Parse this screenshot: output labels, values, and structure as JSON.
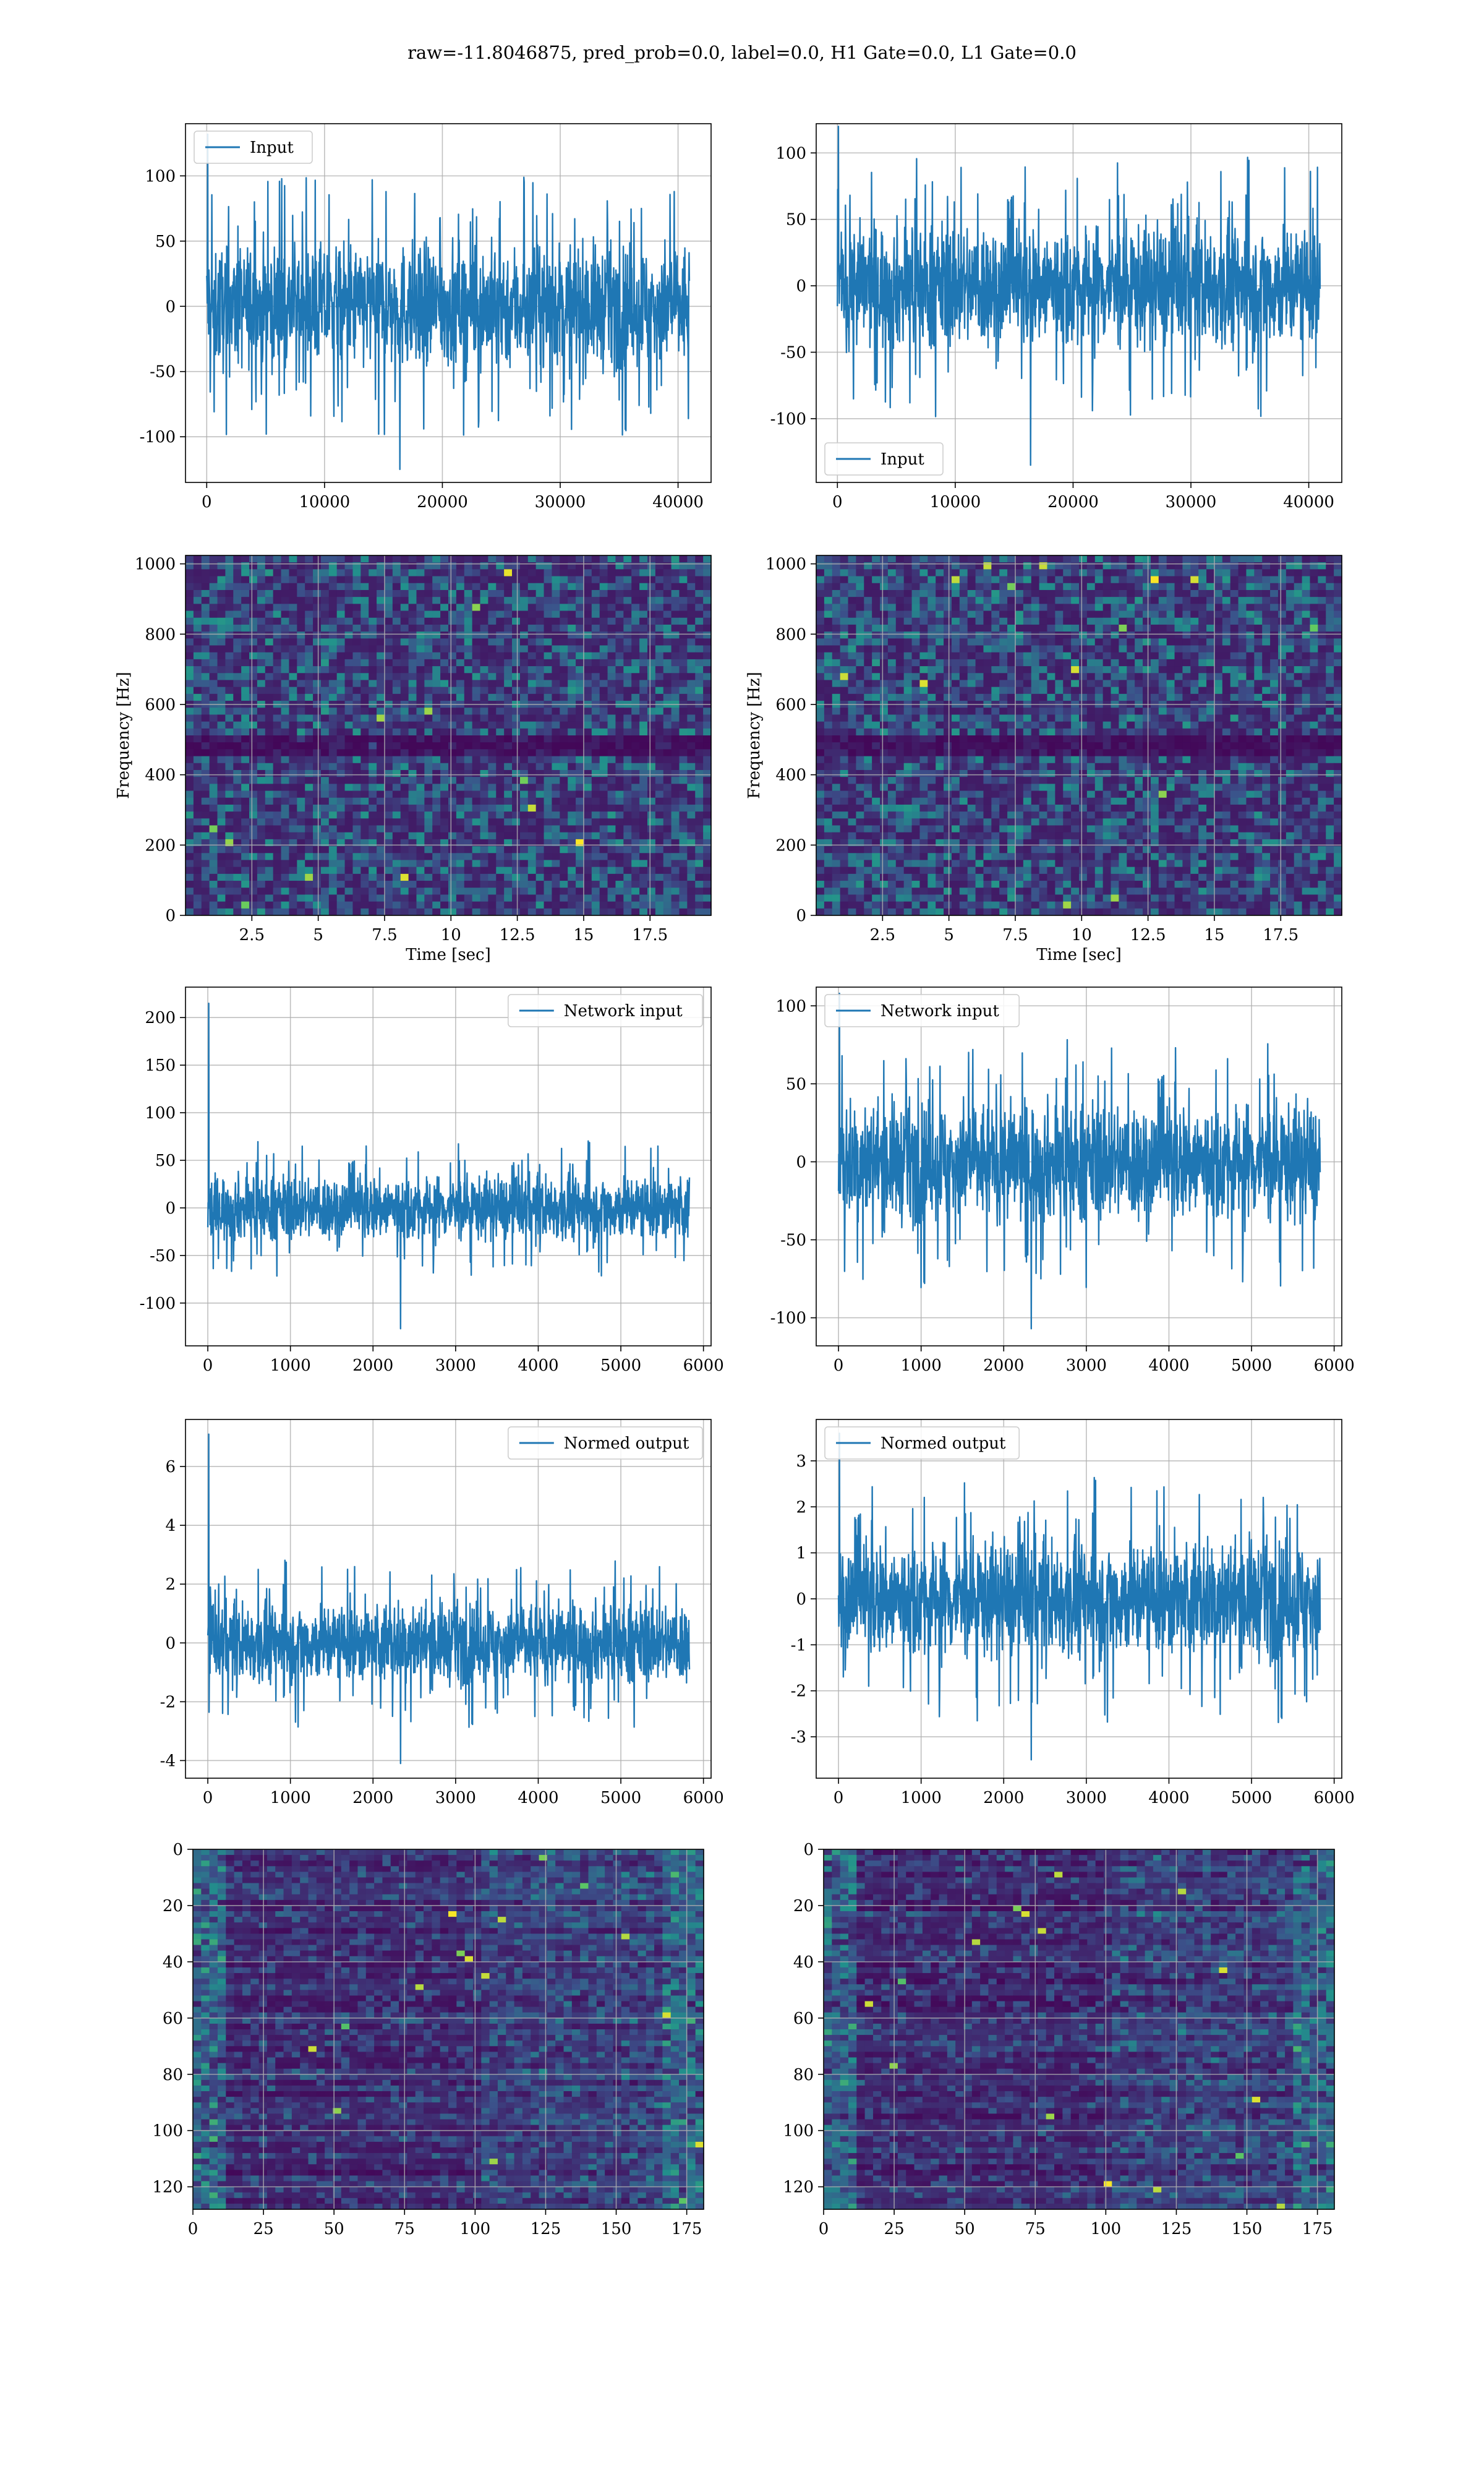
{
  "figure": {
    "title": "raw=-11.8046875, pred_prob=0.0, label=0.0, H1 Gate=0.0, L1 Gate=0.0"
  },
  "colors": {
    "series": "#1f77b4",
    "grid": "#b0b0b0",
    "frame": "#000000",
    "viridis_low": "#440154",
    "viridis_high": "#fde725"
  },
  "chart_data": [
    {
      "type": "line",
      "id": "input-left",
      "legend": [
        "Input"
      ],
      "legend_loc": "upper left",
      "x_range": [
        0,
        40960
      ],
      "ylim": [
        -135,
        140
      ],
      "xticks": [
        0,
        10000,
        20000,
        30000,
        40000
      ],
      "yticks": [
        -100,
        -50,
        0,
        50,
        100
      ],
      "envelope": {
        "typical_amplitude": 55,
        "peak_max": 132,
        "peak_min": -125
      },
      "grid": true
    },
    {
      "type": "line",
      "id": "input-right",
      "legend": [
        "Input"
      ],
      "legend_loc": "lower left",
      "x_range": [
        0,
        40960
      ],
      "ylim": [
        -148,
        122
      ],
      "xticks": [
        0,
        10000,
        20000,
        30000,
        40000
      ],
      "yticks": [
        -100,
        -50,
        0,
        50,
        100
      ],
      "envelope": {
        "typical_amplitude": 55,
        "peak_max": 120,
        "peak_min": -135
      },
      "grid": true
    },
    {
      "type": "heatmap",
      "id": "spectrogram-left",
      "xlabel": "Time [sec]",
      "ylabel": "Frequency [Hz]",
      "xlim": [
        0,
        19.8
      ],
      "ylim": [
        0,
        1024
      ],
      "xticks": [
        2.5,
        5.0,
        7.5,
        10.0,
        12.5,
        15.0,
        17.5
      ],
      "yticks": [
        0,
        200,
        400,
        600,
        800,
        1000
      ],
      "dark_band_hz": 500,
      "grid": true
    },
    {
      "type": "heatmap",
      "id": "spectrogram-right",
      "xlabel": "Time [sec]",
      "ylabel": "Frequency [Hz]",
      "xlim": [
        0,
        19.8
      ],
      "ylim": [
        0,
        1024
      ],
      "xticks": [
        2.5,
        5.0,
        7.5,
        10.0,
        12.5,
        15.0,
        17.5
      ],
      "yticks": [
        0,
        200,
        400,
        600,
        800,
        1000
      ],
      "dark_band_hz": 500,
      "grid": true
    },
    {
      "type": "line",
      "id": "network-input-left",
      "legend": [
        "Network input"
      ],
      "legend_loc": "upper right",
      "x_range": [
        0,
        5830
      ],
      "ylim": [
        -145,
        232
      ],
      "xticks": [
        0,
        1000,
        2000,
        3000,
        4000,
        5000,
        6000
      ],
      "yticks": [
        -100,
        -50,
        0,
        50,
        100,
        150,
        200
      ],
      "envelope": {
        "typical_amplitude": 40,
        "peak_max": 215,
        "peak_min": -127
      },
      "grid": true
    },
    {
      "type": "line",
      "id": "network-input-right",
      "legend": [
        "Network input"
      ],
      "legend_loc": "upper left",
      "x_range": [
        0,
        5830
      ],
      "ylim": [
        -118,
        112
      ],
      "xticks": [
        0,
        1000,
        2000,
        3000,
        4000,
        5000,
        6000
      ],
      "yticks": [
        -100,
        -50,
        0,
        50,
        100
      ],
      "envelope": {
        "typical_amplitude": 45,
        "peak_max": 108,
        "peak_min": -107
      },
      "grid": true
    },
    {
      "type": "line",
      "id": "normed-output-left",
      "legend": [
        "Normed output"
      ],
      "legend_loc": "upper right",
      "x_range": [
        0,
        5830
      ],
      "ylim": [
        -4.6,
        7.6
      ],
      "xticks": [
        0,
        1000,
        2000,
        3000,
        4000,
        5000,
        6000
      ],
      "yticks": [
        -4,
        -2,
        0,
        2,
        4,
        6
      ],
      "envelope": {
        "typical_amplitude": 1.6,
        "peak_max": 7.1,
        "peak_min": -4.1
      },
      "grid": true
    },
    {
      "type": "line",
      "id": "normed-output-right",
      "legend": [
        "Normed output"
      ],
      "legend_loc": "upper left",
      "x_range": [
        0,
        5830
      ],
      "ylim": [
        -3.9,
        3.9
      ],
      "xticks": [
        0,
        1000,
        2000,
        3000,
        4000,
        5000,
        6000
      ],
      "yticks": [
        -3,
        -2,
        -1,
        0,
        1,
        2,
        3
      ],
      "envelope": {
        "typical_amplitude": 1.5,
        "peak_max": 3.6,
        "peak_min": -3.5
      },
      "grid": true
    },
    {
      "type": "heatmap",
      "id": "feature-map-left",
      "xlim": [
        0,
        181
      ],
      "ylim": [
        128,
        0
      ],
      "xticks": [
        0,
        25,
        50,
        75,
        100,
        125,
        150,
        175
      ],
      "yticks": [
        0,
        20,
        40,
        60,
        80,
        100,
        120
      ],
      "grid": true
    },
    {
      "type": "heatmap",
      "id": "feature-map-right",
      "xlim": [
        0,
        181
      ],
      "ylim": [
        128,
        0
      ],
      "xticks": [
        0,
        25,
        50,
        75,
        100,
        125,
        150,
        175
      ],
      "yticks": [
        0,
        20,
        40,
        60,
        80,
        100,
        120
      ],
      "grid": true
    }
  ]
}
